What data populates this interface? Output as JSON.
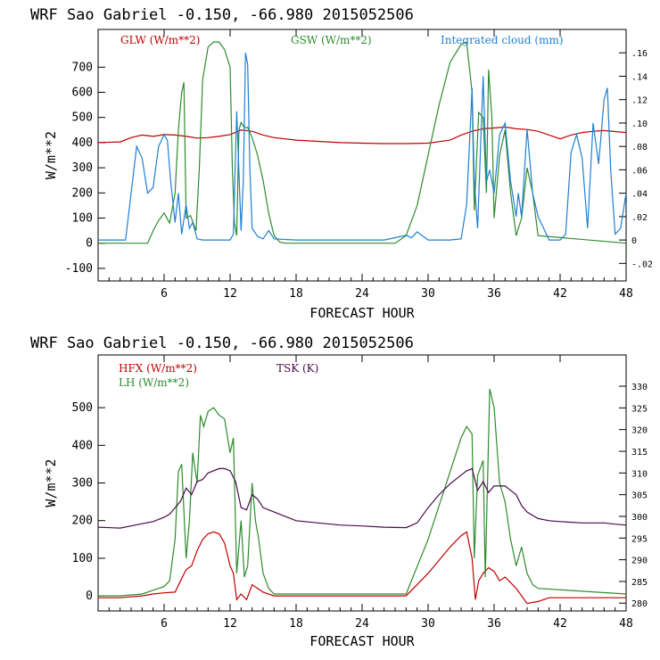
{
  "chart_data": [
    {
      "type": "line",
      "title": "WRF   Sao Gabriel   -0.150, -66.980  2015052506",
      "xlabel": "FORECAST HOUR",
      "ylabel": "W/m**2",
      "xlim": [
        0,
        48
      ],
      "ylim": [
        -150,
        850
      ],
      "y2lim": [
        -0.035,
        0.18
      ],
      "x_ticks": [
        "6",
        "12",
        "18",
        "24",
        "30",
        "36",
        "42",
        "48"
      ],
      "y_ticks": [
        "-100",
        "0",
        "100",
        "200",
        "300",
        "400",
        "500",
        "600",
        "700"
      ],
      "y2_ticks": [
        "-.02",
        "0",
        ".02",
        ".04",
        ".06",
        ".08",
        ".10",
        ".12",
        ".14",
        ".16"
      ],
      "colors": {
        "glw": "#c00000",
        "gsw": "#2e8b2e",
        "cloud": "#1f7fd4"
      },
      "legend": {
        "glw": "GLW (W/m**2)",
        "gsw": "GSW (W/m**2)",
        "cloud": "Integrated cloud (mm)"
      },
      "series": [
        {
          "name": "GLW (W/m**2)",
          "axis": "left",
          "color": "#c00000",
          "x": [
            0,
            2,
            3,
            4,
            5,
            6,
            7,
            8,
            9,
            10,
            11,
            12,
            13,
            14,
            15,
            16,
            18,
            20,
            22,
            24,
            26,
            28,
            30,
            32,
            33,
            34,
            35,
            36,
            37,
            38,
            39,
            40,
            41,
            42,
            43,
            44,
            45,
            46,
            47,
            48
          ],
          "y": [
            400,
            403,
            420,
            430,
            425,
            432,
            430,
            425,
            418,
            420,
            425,
            432,
            450,
            445,
            430,
            420,
            410,
            405,
            400,
            398,
            396,
            396,
            398,
            410,
            430,
            445,
            455,
            458,
            462,
            455,
            452,
            445,
            430,
            415,
            430,
            440,
            445,
            448,
            444,
            440
          ]
        },
        {
          "name": "GSW (W/m**2)",
          "axis": "left",
          "color": "#2e8b2e",
          "x": [
            0,
            4.5,
            5,
            5.5,
            6,
            6.5,
            7,
            7.3,
            7.6,
            7.8,
            8,
            8.4,
            8.9,
            9.2,
            9.5,
            10,
            10.5,
            11,
            11.5,
            12,
            12.2,
            12.4,
            12.6,
            12.8,
            13,
            13.3,
            13.6,
            14,
            14.5,
            15,
            15.5,
            16,
            16.5,
            17,
            18,
            24,
            27,
            28,
            29,
            30,
            31,
            32,
            33,
            33.5,
            34,
            34.2,
            34.6,
            35,
            35.3,
            35.5,
            35.8,
            36,
            36.5,
            37,
            37.5,
            38,
            38.5,
            39,
            39.5,
            40,
            48
          ],
          "y": [
            0,
            0,
            50,
            90,
            120,
            80,
            200,
            450,
            600,
            640,
            100,
            110,
            50,
            300,
            650,
            780,
            800,
            800,
            770,
            700,
            300,
            80,
            30,
            450,
            480,
            460,
            460,
            420,
            350,
            250,
            120,
            30,
            5,
            0,
            0,
            0,
            0,
            30,
            150,
            350,
            550,
            720,
            790,
            800,
            600,
            130,
            520,
            500,
            200,
            690,
            500,
            100,
            350,
            450,
            200,
            30,
            100,
            300,
            200,
            30,
            0
          ]
        },
        {
          "name": "Integrated cloud (mm)",
          "axis": "right",
          "color": "#1f7fd4",
          "x": [
            0,
            2.5,
            3,
            3.5,
            4,
            4.5,
            5,
            5.5,
            6,
            6.3,
            6.6,
            7,
            7.3,
            7.6,
            8,
            8.3,
            8.6,
            9,
            9.5,
            10,
            11,
            12,
            12.3,
            12.6,
            13,
            13.2,
            13.4,
            13.6,
            13.8,
            14,
            14.5,
            15,
            15.5,
            16,
            18,
            20,
            24,
            26,
            27,
            28,
            28.5,
            29,
            30,
            32,
            33,
            33.5,
            34,
            34.2,
            34.5,
            35,
            35.3,
            35.6,
            36,
            36.5,
            37,
            37.5,
            38,
            38.2,
            38.5,
            39,
            39.5,
            40,
            41,
            42,
            42.5,
            43,
            43.5,
            44,
            44.5,
            45,
            45.5,
            46,
            46.3,
            46.6,
            47,
            47.5,
            48
          ],
          "y": [
            0,
            0,
            0.04,
            0.08,
            0.07,
            0.04,
            0.045,
            0.08,
            0.09,
            0.085,
            0.05,
            0.015,
            0.04,
            0.005,
            0.03,
            0.01,
            0.015,
            0.001,
            0,
            0,
            0,
            0,
            0.005,
            0.11,
            0.008,
            0.05,
            0.16,
            0.15,
            0.06,
            0.01,
            0.003,
            0.001,
            0.008,
            0.001,
            0,
            0,
            0,
            0,
            0.002,
            0.004,
            0.002,
            0.007,
            0,
            0,
            0.001,
            0.03,
            0.13,
            0.05,
            0.01,
            0.14,
            0.05,
            0.06,
            0.04,
            0.09,
            0.1,
            0.05,
            0.02,
            0.04,
            0.02,
            0.095,
            0.04,
            0.02,
            0,
            0,
            0.005,
            0.075,
            0.09,
            0.07,
            0.01,
            0.1,
            0.065,
            0.12,
            0.13,
            0.06,
            0.005,
            0.01,
            0.04
          ]
        }
      ]
    },
    {
      "type": "line",
      "title": "WRF   Sao Gabriel   -0.150, -66.980  2015052506",
      "xlabel": "FORECAST HOUR",
      "ylabel": "W/m**2",
      "xlim": [
        0,
        48
      ],
      "ylim": [
        -40,
        640
      ],
      "y2lim": [
        278.2,
        337.2
      ],
      "x_ticks": [
        "6",
        "12",
        "18",
        "24",
        "30",
        "36",
        "42",
        "48"
      ],
      "y_ticks": [
        "0",
        "100",
        "200",
        "300",
        "400",
        "500"
      ],
      "y2_ticks": [
        "280",
        "285",
        "290",
        "295",
        "300",
        "305",
        "310",
        "315",
        "320",
        "325",
        "330"
      ],
      "colors": {
        "hfx": "#c00000",
        "lh": "#2e8b2e",
        "tsk": "#4b0a4b"
      },
      "legend": {
        "hfx": "HFX (W/m**2)",
        "lh": "LH  (W/m**2)",
        "tsk": "TSK (K)"
      },
      "series": [
        {
          "name": "HFX (W/m**2)",
          "axis": "left",
          "color": "#c00000",
          "x": [
            0,
            2,
            4,
            5,
            6,
            7,
            7.5,
            8,
            8.5,
            9,
            9.5,
            10,
            10.5,
            11,
            11.5,
            12,
            12.3,
            12.6,
            13,
            13.5,
            14,
            15,
            16,
            18,
            24,
            28,
            30,
            32,
            33,
            33.5,
            34,
            34.3,
            34.6,
            35,
            35.5,
            36,
            36.5,
            37,
            38,
            39,
            40,
            41,
            48
          ],
          "y": [
            -5,
            -5,
            0,
            5,
            8,
            10,
            40,
            70,
            80,
            120,
            150,
            165,
            170,
            165,
            140,
            80,
            60,
            -10,
            5,
            -10,
            30,
            10,
            0,
            0,
            0,
            0,
            60,
            130,
            160,
            170,
            100,
            -10,
            40,
            60,
            75,
            65,
            40,
            50,
            20,
            -20,
            -15,
            -5,
            -5
          ]
        },
        {
          "name": "LH  (W/m**2)",
          "axis": "left",
          "color": "#2e8b2e",
          "x": [
            0,
            2,
            4,
            5,
            6,
            6.5,
            7,
            7.3,
            7.6,
            8,
            8.3,
            8.6,
            9,
            9.3,
            9.6,
            10,
            10.5,
            11,
            11.5,
            12,
            12.3,
            12.6,
            13,
            13.3,
            13.6,
            14,
            14.3,
            14.6,
            15,
            15.5,
            16,
            17,
            20,
            24,
            28,
            30,
            32,
            33,
            33.5,
            34,
            34.2,
            34.5,
            35,
            35.2,
            35.4,
            35.6,
            36,
            36.5,
            37,
            37.5,
            38,
            38.5,
            39,
            39.5,
            40,
            48
          ],
          "y": [
            0,
            0,
            5,
            15,
            25,
            40,
            150,
            330,
            350,
            100,
            200,
            380,
            300,
            480,
            450,
            490,
            500,
            480,
            470,
            380,
            420,
            60,
            200,
            50,
            80,
            300,
            200,
            150,
            60,
            20,
            5,
            5,
            5,
            5,
            5,
            150,
            330,
            420,
            450,
            430,
            100,
            320,
            360,
            50,
            300,
            550,
            500,
            300,
            250,
            150,
            80,
            130,
            60,
            30,
            20,
            5
          ]
        },
        {
          "name": "TSK (K)",
          "axis": "right",
          "color": "#4b0a4b",
          "x": [
            0,
            2,
            4,
            5,
            6,
            6.5,
            7,
            7.5,
            8,
            8.5,
            9,
            9.5,
            10,
            11,
            11.5,
            12,
            12.5,
            13,
            13.5,
            14,
            14.5,
            15,
            16,
            18,
            20,
            22,
            24,
            26,
            28,
            29,
            30,
            31,
            32,
            33,
            33.5,
            34,
            34.5,
            35,
            35.5,
            36,
            37,
            37.5,
            38,
            38.5,
            39,
            40,
            41,
            42,
            44,
            46,
            47,
            48
          ],
          "y": [
            297.5,
            297.3,
            298.3,
            298.8,
            299.8,
            300.5,
            302.0,
            303.5,
            306.5,
            305.0,
            308.0,
            308.5,
            310.0,
            311.0,
            311.0,
            310.5,
            308.0,
            302.0,
            301.5,
            305.0,
            304.0,
            302.0,
            301.0,
            299.0,
            298.5,
            298.0,
            297.8,
            297.5,
            297.4,
            298.5,
            302.0,
            305.0,
            307.5,
            309.5,
            310.5,
            311.0,
            306.0,
            308.0,
            305.5,
            307.0,
            307.0,
            306.0,
            305.0,
            302.5,
            301.0,
            299.5,
            299.0,
            298.8,
            298.5,
            298.5,
            298.2,
            298.0
          ]
        }
      ]
    }
  ]
}
